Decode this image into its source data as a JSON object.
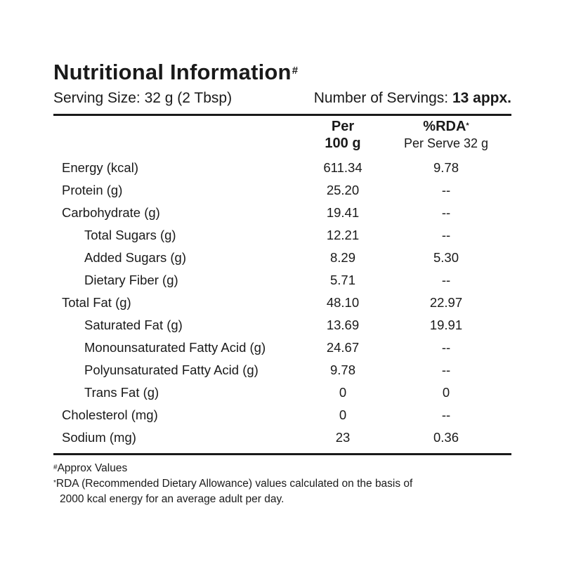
{
  "title": "Nutritional Information",
  "title_mark": "#",
  "serving": {
    "size_label": "Serving Size:",
    "size_value": "32 g (2 Tbsp)",
    "servings_label": "Number of Servings:",
    "servings_value": "13 appx."
  },
  "columns": {
    "per_line1": "Per",
    "per_line2": "100 g",
    "rda_title": "%RDA",
    "rda_mark": "*",
    "rda_sub": "Per Serve 32 g"
  },
  "rows": [
    {
      "label": "Energy (kcal)",
      "per100": "611.34",
      "rda": "9.78"
    },
    {
      "label": "Protein (g)",
      "per100": "25.20",
      "rda": "--"
    },
    {
      "label": "Carbohydrate (g)",
      "per100": "19.41",
      "rda": "--"
    },
    {
      "label": "Total Sugars (g)",
      "per100": "12.21",
      "rda": "--"
    },
    {
      "label": "Added Sugars (g)",
      "per100": "8.29",
      "rda": "5.30"
    },
    {
      "label": "Dietary Fiber (g)",
      "per100": "5.71",
      "rda": "--"
    },
    {
      "label": "Total Fat (g)",
      "per100": "48.10",
      "rda": "22.97"
    },
    {
      "label": "Saturated Fat (g)",
      "per100": "13.69",
      "rda": "19.91"
    },
    {
      "label": "Monounsaturated Fatty Acid (g)",
      "per100": "24.67",
      "rda": "--"
    },
    {
      "label": "Polyunsaturated Fatty Acid (g)",
      "per100": "9.78",
      "rda": "--"
    },
    {
      "label": "Trans Fat (g)",
      "per100": "0",
      "rda": "0"
    },
    {
      "label": "Cholesterol (mg)",
      "per100": "0",
      "rda": "--"
    },
    {
      "label": "Sodium (mg)",
      "per100": "23",
      "rda": "0.36"
    }
  ],
  "notes": {
    "approx_mark": "#",
    "approx_text": "Approx Values",
    "rda_mark": "*",
    "rda_line1": "RDA (Recommended Dietary Allowance) values calculated on the basis of",
    "rda_line2": "2000 kcal energy for an average adult per day."
  }
}
